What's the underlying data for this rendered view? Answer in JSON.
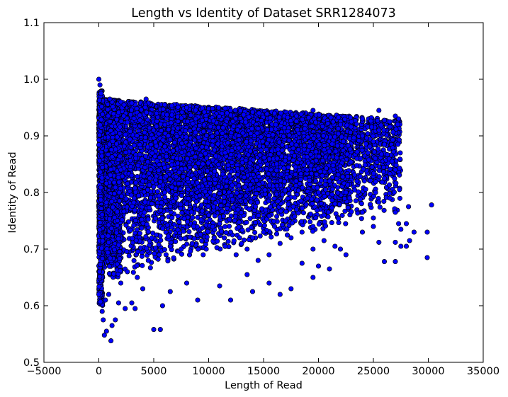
{
  "chart_data": {
    "type": "scatter",
    "title": "Length vs Identity of Dataset SRR1284073",
    "xlabel": "Length of Read",
    "ylabel": "Identity of Read",
    "xlim": [
      -5000,
      35000
    ],
    "ylim": [
      0.5,
      1.1
    ],
    "xticks": [
      -5000,
      0,
      5000,
      10000,
      15000,
      20000,
      25000,
      30000,
      35000
    ],
    "yticks": [
      0.5,
      0.6,
      0.7,
      0.8,
      0.9,
      1.0,
      1.1
    ],
    "xtick_labels": [
      "−5000",
      "0",
      "5000",
      "10000",
      "15000",
      "20000",
      "25000",
      "30000",
      "35000"
    ],
    "ytick_labels": [
      "0.5",
      "0.6",
      "0.7",
      "0.8",
      "0.9",
      "1.0",
      "1.1"
    ],
    "grid": false,
    "marker_color": "#0000ff",
    "marker_edge_color": "#000000",
    "points": [
      [
        0,
        1.0
      ],
      [
        100,
        0.99
      ],
      [
        200,
        0.975
      ],
      [
        4300,
        0.965
      ],
      [
        1200,
        0.96
      ],
      [
        6000,
        0.955
      ],
      [
        19500,
        0.945
      ],
      [
        25500,
        0.945
      ],
      [
        27000,
        0.935
      ],
      [
        26500,
        0.925
      ],
      [
        27300,
        0.93
      ],
      [
        25500,
        0.91
      ],
      [
        24000,
        0.9
      ],
      [
        25000,
        0.89
      ],
      [
        26000,
        0.885
      ],
      [
        26700,
        0.855
      ],
      [
        24500,
        0.87
      ],
      [
        23500,
        0.86
      ],
      [
        26000,
        0.825
      ],
      [
        25200,
        0.8
      ],
      [
        26500,
        0.79
      ],
      [
        25000,
        0.755
      ],
      [
        24000,
        0.765
      ],
      [
        27000,
        0.765
      ],
      [
        28200,
        0.775
      ],
      [
        30300,
        0.778
      ],
      [
        27300,
        0.745
      ],
      [
        28000,
        0.745
      ],
      [
        27500,
        0.735
      ],
      [
        28700,
        0.73
      ],
      [
        29900,
        0.73
      ],
      [
        27000,
        0.712
      ],
      [
        27500,
        0.705
      ],
      [
        28000,
        0.705
      ],
      [
        28300,
        0.715
      ],
      [
        29900,
        0.685
      ],
      [
        27000,
        0.678
      ],
      [
        26000,
        0.678
      ],
      [
        25500,
        0.712
      ],
      [
        24000,
        0.73
      ],
      [
        25000,
        0.74
      ],
      [
        22000,
        0.7
      ],
      [
        22500,
        0.69
      ],
      [
        21500,
        0.705
      ],
      [
        20500,
        0.715
      ],
      [
        19500,
        0.7
      ],
      [
        20000,
        0.67
      ],
      [
        19500,
        0.65
      ],
      [
        21000,
        0.665
      ],
      [
        18500,
        0.675
      ],
      [
        17500,
        0.63
      ],
      [
        16500,
        0.62
      ],
      [
        15500,
        0.64
      ],
      [
        14000,
        0.625
      ],
      [
        13500,
        0.655
      ],
      [
        12000,
        0.61
      ],
      [
        11000,
        0.635
      ],
      [
        9000,
        0.61
      ],
      [
        8000,
        0.64
      ],
      [
        6500,
        0.625
      ],
      [
        5800,
        0.6
      ],
      [
        5000,
        0.558
      ],
      [
        5600,
        0.558
      ],
      [
        4000,
        0.63
      ],
      [
        3300,
        0.595
      ],
      [
        3000,
        0.605
      ],
      [
        2400,
        0.595
      ],
      [
        1800,
        0.605
      ],
      [
        1200,
        0.565
      ],
      [
        1100,
        0.538
      ],
      [
        700,
        0.555
      ],
      [
        500,
        0.548
      ],
      [
        400,
        0.575
      ],
      [
        300,
        0.59
      ],
      [
        600,
        0.61
      ],
      [
        900,
        0.62
      ],
      [
        1500,
        0.575
      ],
      [
        2000,
        0.64
      ],
      [
        2600,
        0.66
      ],
      [
        3500,
        0.65
      ],
      [
        4500,
        0.68
      ],
      [
        5500,
        0.69
      ],
      [
        6500,
        0.705
      ],
      [
        7500,
        0.7
      ],
      [
        8500,
        0.71
      ],
      [
        9500,
        0.69
      ],
      [
        10500,
        0.72
      ],
      [
        11500,
        0.705
      ],
      [
        12500,
        0.69
      ],
      [
        13500,
        0.7
      ],
      [
        14500,
        0.68
      ],
      [
        15500,
        0.69
      ],
      [
        16500,
        0.71
      ],
      [
        17500,
        0.72
      ],
      [
        18500,
        0.73
      ],
      [
        19500,
        0.74
      ],
      [
        20500,
        0.76
      ],
      [
        21500,
        0.78
      ],
      [
        22500,
        0.8
      ],
      [
        23500,
        0.82
      ],
      [
        22000,
        0.84
      ],
      [
        21000,
        0.82
      ],
      [
        20000,
        0.8
      ],
      [
        19000,
        0.79
      ],
      [
        18000,
        0.77
      ],
      [
        17000,
        0.75
      ],
      [
        16000,
        0.74
      ],
      [
        15000,
        0.73
      ],
      [
        14000,
        0.72
      ],
      [
        13000,
        0.71
      ],
      [
        12000,
        0.73
      ],
      [
        11000,
        0.745
      ],
      [
        10000,
        0.76
      ],
      [
        9000,
        0.77
      ],
      [
        8000,
        0.78
      ],
      [
        7000,
        0.79
      ],
      [
        6000,
        0.8
      ],
      [
        5000,
        0.81
      ],
      [
        4000,
        0.82
      ],
      [
        3000,
        0.83
      ],
      [
        2000,
        0.84
      ],
      [
        1000,
        0.85
      ],
      [
        20000,
        0.9
      ],
      [
        21000,
        0.91
      ],
      [
        22000,
        0.92
      ],
      [
        23000,
        0.925
      ],
      [
        24000,
        0.93
      ],
      [
        18000,
        0.935
      ],
      [
        16000,
        0.94
      ],
      [
        14000,
        0.942
      ],
      [
        12000,
        0.945
      ],
      [
        10000,
        0.948
      ],
      [
        8000,
        0.95
      ],
      [
        3000,
        0.958
      ],
      [
        2000,
        0.96
      ],
      [
        1000,
        0.965
      ]
    ]
  }
}
